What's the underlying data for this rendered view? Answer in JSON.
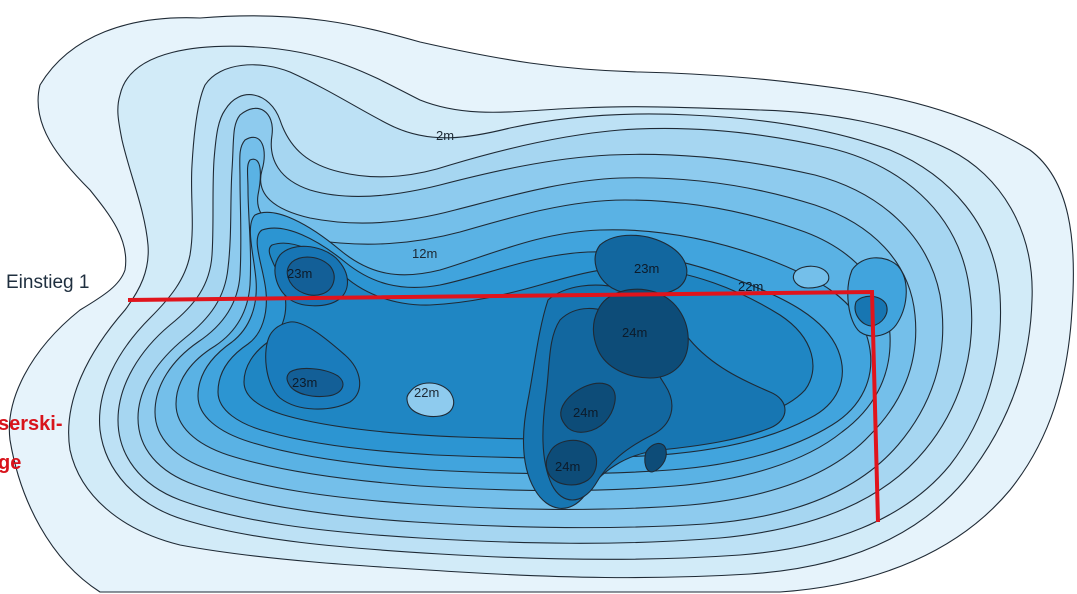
{
  "map": {
    "colors": {
      "water_levels": [
        "#e6f3fb",
        "#d2ebf8",
        "#bde1f5",
        "#a6d6f1",
        "#8ecbee",
        "#74bfea",
        "#5ab2e4",
        "#41a4dd",
        "#2c95d2",
        "#1f86c3",
        "#1776b2",
        "#12679f",
        "#105a8c",
        "#0d4c78"
      ],
      "contour_line": "#1f2a35",
      "route": "#e0141c",
      "warning_text": "#d8141c"
    },
    "depth_labels": {
      "d1": "2m",
      "d2": "12m",
      "d3": "23m",
      "d4": "23m",
      "d5": "22m",
      "d6": "23m",
      "d7": "22m",
      "d8": "24m",
      "d9": "24m",
      "d10": "24m"
    },
    "entry_label": "Einstieg 1",
    "warning_label_line1": "serski-",
    "warning_label_line2": "ge"
  }
}
